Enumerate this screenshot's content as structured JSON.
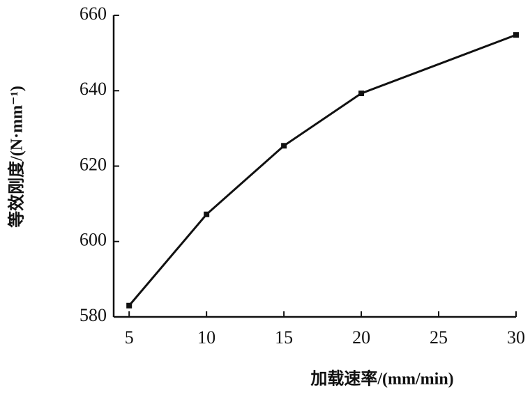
{
  "chart_data": {
    "type": "line",
    "x_label": "加载速率/(mm/min)",
    "y_label": "等效刚度/(N·mm⁻¹)",
    "x": [
      5,
      10,
      15,
      20,
      30
    ],
    "series": [
      {
        "color": "#111111",
        "values": [
          583,
          607.2,
          625.4,
          639.3,
          654.8
        ]
      }
    ],
    "xlim": [
      4,
      30
    ],
    "xticks": [
      5,
      10,
      15,
      20,
      25,
      30
    ],
    "ylim": [
      580,
      660
    ],
    "yticks": [
      580,
      600,
      620,
      640,
      660
    ]
  }
}
